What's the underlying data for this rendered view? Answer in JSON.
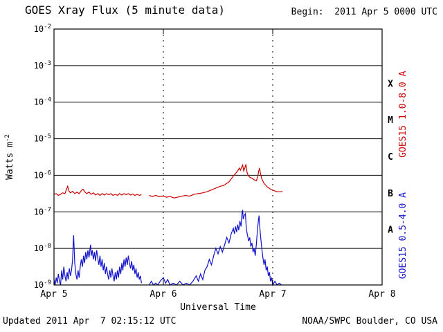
{
  "header": {
    "title": "GOES Xray Flux (5 minute data)",
    "begin_label": "Begin:  2011 Apr 5 0000 UTC"
  },
  "footer": {
    "updated": "Updated 2011 Apr  7 02:15:12 UTC",
    "source": "NOAA/SWPC Boulder, CO USA"
  },
  "chart_data": {
    "type": "line",
    "title": "GOES Xray Flux (5 minute data)",
    "xlabel": "Universal Time",
    "ylabel_base": "Watts m",
    "ylabel_exp": "-2",
    "x_ticks": [
      "Apr 5",
      "Apr 6",
      "Apr 7",
      "Apr 8"
    ],
    "x_tick_days": [
      0,
      1,
      2,
      3
    ],
    "xlim_days": [
      0,
      3
    ],
    "ylim_log": [
      -9,
      -2
    ],
    "y_tick_base": "10",
    "y_tick_exponents": [
      -2,
      -3,
      -4,
      -5,
      -6,
      -7,
      -8,
      -9
    ],
    "grid": {
      "horizontal": "solid-decades",
      "vertical": "dashed-days"
    },
    "legend_position": "right-rotated",
    "flare_classes": [
      {
        "label": "X",
        "log_center": -3.5
      },
      {
        "label": "M",
        "log_center": -4.5
      },
      {
        "label": "C",
        "log_center": -5.5
      },
      {
        "label": "B",
        "log_center": -6.5
      },
      {
        "label": "A",
        "log_center": -7.5
      }
    ],
    "series": [
      {
        "id": "goes15-long",
        "name": "GOES15 1.0-8.0 A",
        "color": "#cc0000",
        "label_center_log": -4.33,
        "segments": [
          [
            [
              0.0,
              -6.52
            ],
            [
              0.02,
              -6.5
            ],
            [
              0.04,
              -6.55
            ],
            [
              0.06,
              -6.52
            ],
            [
              0.08,
              -6.48
            ],
            [
              0.1,
              -6.5
            ],
            [
              0.115,
              -6.38
            ],
            [
              0.125,
              -6.3
            ],
            [
              0.135,
              -6.42
            ],
            [
              0.15,
              -6.48
            ],
            [
              0.17,
              -6.44
            ],
            [
              0.19,
              -6.5
            ],
            [
              0.21,
              -6.46
            ],
            [
              0.23,
              -6.5
            ],
            [
              0.25,
              -6.42
            ],
            [
              0.265,
              -6.38
            ],
            [
              0.28,
              -6.45
            ],
            [
              0.3,
              -6.5
            ],
            [
              0.32,
              -6.46
            ],
            [
              0.34,
              -6.52
            ],
            [
              0.36,
              -6.48
            ],
            [
              0.38,
              -6.54
            ],
            [
              0.4,
              -6.5
            ],
            [
              0.42,
              -6.55
            ],
            [
              0.44,
              -6.5
            ],
            [
              0.46,
              -6.54
            ],
            [
              0.48,
              -6.5
            ],
            [
              0.5,
              -6.53
            ],
            [
              0.52,
              -6.5
            ],
            [
              0.54,
              -6.55
            ],
            [
              0.56,
              -6.52
            ],
            [
              0.58,
              -6.55
            ],
            [
              0.6,
              -6.5
            ],
            [
              0.62,
              -6.54
            ],
            [
              0.64,
              -6.5
            ],
            [
              0.66,
              -6.53
            ],
            [
              0.68,
              -6.5
            ],
            [
              0.7,
              -6.54
            ],
            [
              0.72,
              -6.51
            ],
            [
              0.74,
              -6.55
            ],
            [
              0.76,
              -6.52
            ],
            [
              0.78,
              -6.55
            ],
            [
              0.8,
              -6.53
            ]
          ],
          [
            [
              0.87,
              -6.55
            ],
            [
              0.9,
              -6.58
            ],
            [
              0.93,
              -6.55
            ],
            [
              0.96,
              -6.58
            ],
            [
              1.0,
              -6.57
            ],
            [
              1.03,
              -6.6
            ],
            [
              1.06,
              -6.58
            ],
            [
              1.1,
              -6.62
            ],
            [
              1.13,
              -6.6
            ],
            [
              1.16,
              -6.58
            ],
            [
              1.2,
              -6.55
            ],
            [
              1.24,
              -6.57
            ],
            [
              1.28,
              -6.52
            ],
            [
              1.32,
              -6.5
            ],
            [
              1.36,
              -6.48
            ],
            [
              1.4,
              -6.45
            ],
            [
              1.44,
              -6.4
            ],
            [
              1.48,
              -6.35
            ],
            [
              1.52,
              -6.3
            ],
            [
              1.55,
              -6.28
            ],
            [
              1.58,
              -6.22
            ],
            [
              1.6,
              -6.18
            ],
            [
              1.62,
              -6.1
            ],
            [
              1.64,
              -6.02
            ],
            [
              1.66,
              -5.95
            ],
            [
              1.68,
              -5.88
            ],
            [
              1.695,
              -5.8
            ],
            [
              1.705,
              -5.86
            ],
            [
              1.715,
              -5.78
            ],
            [
              1.725,
              -5.72
            ],
            [
              1.735,
              -5.88
            ],
            [
              1.745,
              -5.8
            ],
            [
              1.755,
              -5.7
            ],
            [
              1.765,
              -5.92
            ],
            [
              1.775,
              -6.0
            ],
            [
              1.79,
              -6.05
            ],
            [
              1.81,
              -6.08
            ],
            [
              1.83,
              -6.12
            ],
            [
              1.85,
              -6.15
            ],
            [
              1.862,
              -6.05
            ],
            [
              1.872,
              -5.88
            ],
            [
              1.88,
              -5.8
            ],
            [
              1.888,
              -5.95
            ],
            [
              1.9,
              -6.1
            ],
            [
              1.92,
              -6.22
            ],
            [
              1.95,
              -6.32
            ],
            [
              1.98,
              -6.38
            ],
            [
              2.01,
              -6.42
            ],
            [
              2.04,
              -6.45
            ],
            [
              2.07,
              -6.45
            ],
            [
              2.09,
              -6.44
            ]
          ]
        ]
      },
      {
        "id": "goes15-short",
        "name": "GOES15 0.5-4.0 A",
        "color": "#1111cc",
        "label_center_log": -7.65,
        "segments": [
          [
            [
              0.0,
              -8.85
            ],
            [
              0.01,
              -9.0
            ],
            [
              0.02,
              -8.8
            ],
            [
              0.03,
              -8.95
            ],
            [
              0.04,
              -8.7
            ],
            [
              0.05,
              -8.9
            ],
            [
              0.06,
              -9.0
            ],
            [
              0.07,
              -8.6
            ],
            [
              0.08,
              -8.85
            ],
            [
              0.09,
              -8.5
            ],
            [
              0.1,
              -8.75
            ],
            [
              0.11,
              -8.9
            ],
            [
              0.12,
              -8.65
            ],
            [
              0.13,
              -8.85
            ],
            [
              0.14,
              -8.55
            ],
            [
              0.15,
              -8.75
            ],
            [
              0.16,
              -8.6
            ],
            [
              0.17,
              -8.3
            ],
            [
              0.175,
              -7.9
            ],
            [
              0.18,
              -7.64
            ],
            [
              0.185,
              -8.05
            ],
            [
              0.19,
              -8.4
            ],
            [
              0.2,
              -8.7
            ],
            [
              0.21,
              -8.85
            ],
            [
              0.22,
              -8.6
            ],
            [
              0.23,
              -8.8
            ],
            [
              0.24,
              -8.5
            ],
            [
              0.25,
              -8.3
            ],
            [
              0.26,
              -8.5
            ],
            [
              0.27,
              -8.2
            ],
            [
              0.28,
              -8.4
            ],
            [
              0.29,
              -8.1
            ],
            [
              0.3,
              -8.3
            ],
            [
              0.31,
              -8.05
            ],
            [
              0.32,
              -8.25
            ],
            [
              0.33,
              -8.0
            ],
            [
              0.335,
              -7.9
            ],
            [
              0.34,
              -8.2
            ],
            [
              0.35,
              -8.05
            ],
            [
              0.36,
              -8.3
            ],
            [
              0.37,
              -8.1
            ],
            [
              0.38,
              -8.35
            ],
            [
              0.39,
              -8.05
            ],
            [
              0.4,
              -8.25
            ],
            [
              0.41,
              -8.45
            ],
            [
              0.42,
              -8.2
            ],
            [
              0.43,
              -8.5
            ],
            [
              0.44,
              -8.3
            ],
            [
              0.45,
              -8.6
            ],
            [
              0.46,
              -8.4
            ],
            [
              0.47,
              -8.7
            ],
            [
              0.48,
              -8.5
            ],
            [
              0.49,
              -8.7
            ],
            [
              0.5,
              -8.85
            ],
            [
              0.51,
              -8.6
            ],
            [
              0.52,
              -8.8
            ],
            [
              0.53,
              -8.55
            ],
            [
              0.54,
              -8.75
            ],
            [
              0.55,
              -8.9
            ],
            [
              0.56,
              -8.65
            ],
            [
              0.57,
              -8.85
            ],
            [
              0.58,
              -8.6
            ],
            [
              0.59,
              -8.8
            ],
            [
              0.6,
              -8.5
            ],
            [
              0.61,
              -8.7
            ],
            [
              0.62,
              -8.4
            ],
            [
              0.63,
              -8.6
            ],
            [
              0.64,
              -8.3
            ],
            [
              0.65,
              -8.5
            ],
            [
              0.66,
              -8.25
            ],
            [
              0.67,
              -8.45
            ],
            [
              0.68,
              -8.2
            ],
            [
              0.69,
              -8.4
            ],
            [
              0.7,
              -8.55
            ],
            [
              0.71,
              -8.35
            ],
            [
              0.72,
              -8.6
            ],
            [
              0.73,
              -8.45
            ],
            [
              0.74,
              -8.7
            ],
            [
              0.75,
              -8.55
            ],
            [
              0.76,
              -8.8
            ],
            [
              0.77,
              -8.65
            ],
            [
              0.78,
              -8.85
            ],
            [
              0.79,
              -8.75
            ],
            [
              0.8,
              -8.95
            ]
          ],
          [
            [
              0.87,
              -9.0
            ],
            [
              0.89,
              -8.9
            ],
            [
              0.91,
              -9.0
            ],
            [
              0.93,
              -8.95
            ],
            [
              0.95,
              -9.0
            ],
            [
              0.97,
              -8.9
            ],
            [
              1.0,
              -8.8
            ],
            [
              1.02,
              -8.95
            ],
            [
              1.04,
              -8.85
            ],
            [
              1.06,
              -9.0
            ],
            [
              1.09,
              -8.95
            ],
            [
              1.12,
              -9.0
            ],
            [
              1.15,
              -8.9
            ],
            [
              1.18,
              -9.0
            ],
            [
              1.21,
              -8.95
            ],
            [
              1.24,
              -9.0
            ],
            [
              1.27,
              -8.9
            ],
            [
              1.3,
              -8.75
            ],
            [
              1.32,
              -8.9
            ],
            [
              1.34,
              -8.7
            ],
            [
              1.36,
              -8.85
            ],
            [
              1.38,
              -8.6
            ],
            [
              1.4,
              -8.5
            ],
            [
              1.42,
              -8.3
            ],
            [
              1.44,
              -8.45
            ],
            [
              1.46,
              -8.2
            ],
            [
              1.48,
              -8.0
            ],
            [
              1.5,
              -8.15
            ],
            [
              1.52,
              -7.95
            ],
            [
              1.54,
              -8.1
            ],
            [
              1.56,
              -7.9
            ],
            [
              1.58,
              -7.7
            ],
            [
              1.6,
              -7.85
            ],
            [
              1.62,
              -7.6
            ],
            [
              1.64,
              -7.45
            ],
            [
              1.65,
              -7.6
            ],
            [
              1.66,
              -7.4
            ],
            [
              1.67,
              -7.55
            ],
            [
              1.68,
              -7.35
            ],
            [
              1.69,
              -7.5
            ],
            [
              1.7,
              -7.25
            ],
            [
              1.71,
              -7.4
            ],
            [
              1.72,
              -7.0
            ],
            [
              1.725,
              -6.95
            ],
            [
              1.73,
              -7.2
            ],
            [
              1.74,
              -7.1
            ],
            [
              1.75,
              -7.05
            ],
            [
              1.755,
              -7.3
            ],
            [
              1.76,
              -7.5
            ],
            [
              1.77,
              -7.65
            ],
            [
              1.78,
              -7.8
            ],
            [
              1.79,
              -7.7
            ],
            [
              1.8,
              -7.95
            ],
            [
              1.81,
              -7.85
            ],
            [
              1.82,
              -8.1
            ],
            [
              1.83,
              -8.0
            ],
            [
              1.84,
              -8.2
            ],
            [
              1.85,
              -7.9
            ],
            [
              1.86,
              -7.5
            ],
            [
              1.87,
              -7.2
            ],
            [
              1.875,
              -7.1
            ],
            [
              1.88,
              -7.35
            ],
            [
              1.89,
              -7.7
            ],
            [
              1.9,
              -8.0
            ],
            [
              1.91,
              -8.25
            ],
            [
              1.92,
              -8.45
            ],
            [
              1.93,
              -8.3
            ],
            [
              1.94,
              -8.6
            ],
            [
              1.95,
              -8.5
            ],
            [
              1.96,
              -8.75
            ],
            [
              1.97,
              -8.65
            ],
            [
              1.98,
              -8.9
            ],
            [
              1.99,
              -8.8
            ],
            [
              2.0,
              -9.0
            ],
            [
              2.02,
              -8.9
            ],
            [
              2.04,
              -9.0
            ],
            [
              2.06,
              -8.95
            ],
            [
              2.08,
              -9.0
            ]
          ]
        ]
      }
    ]
  }
}
